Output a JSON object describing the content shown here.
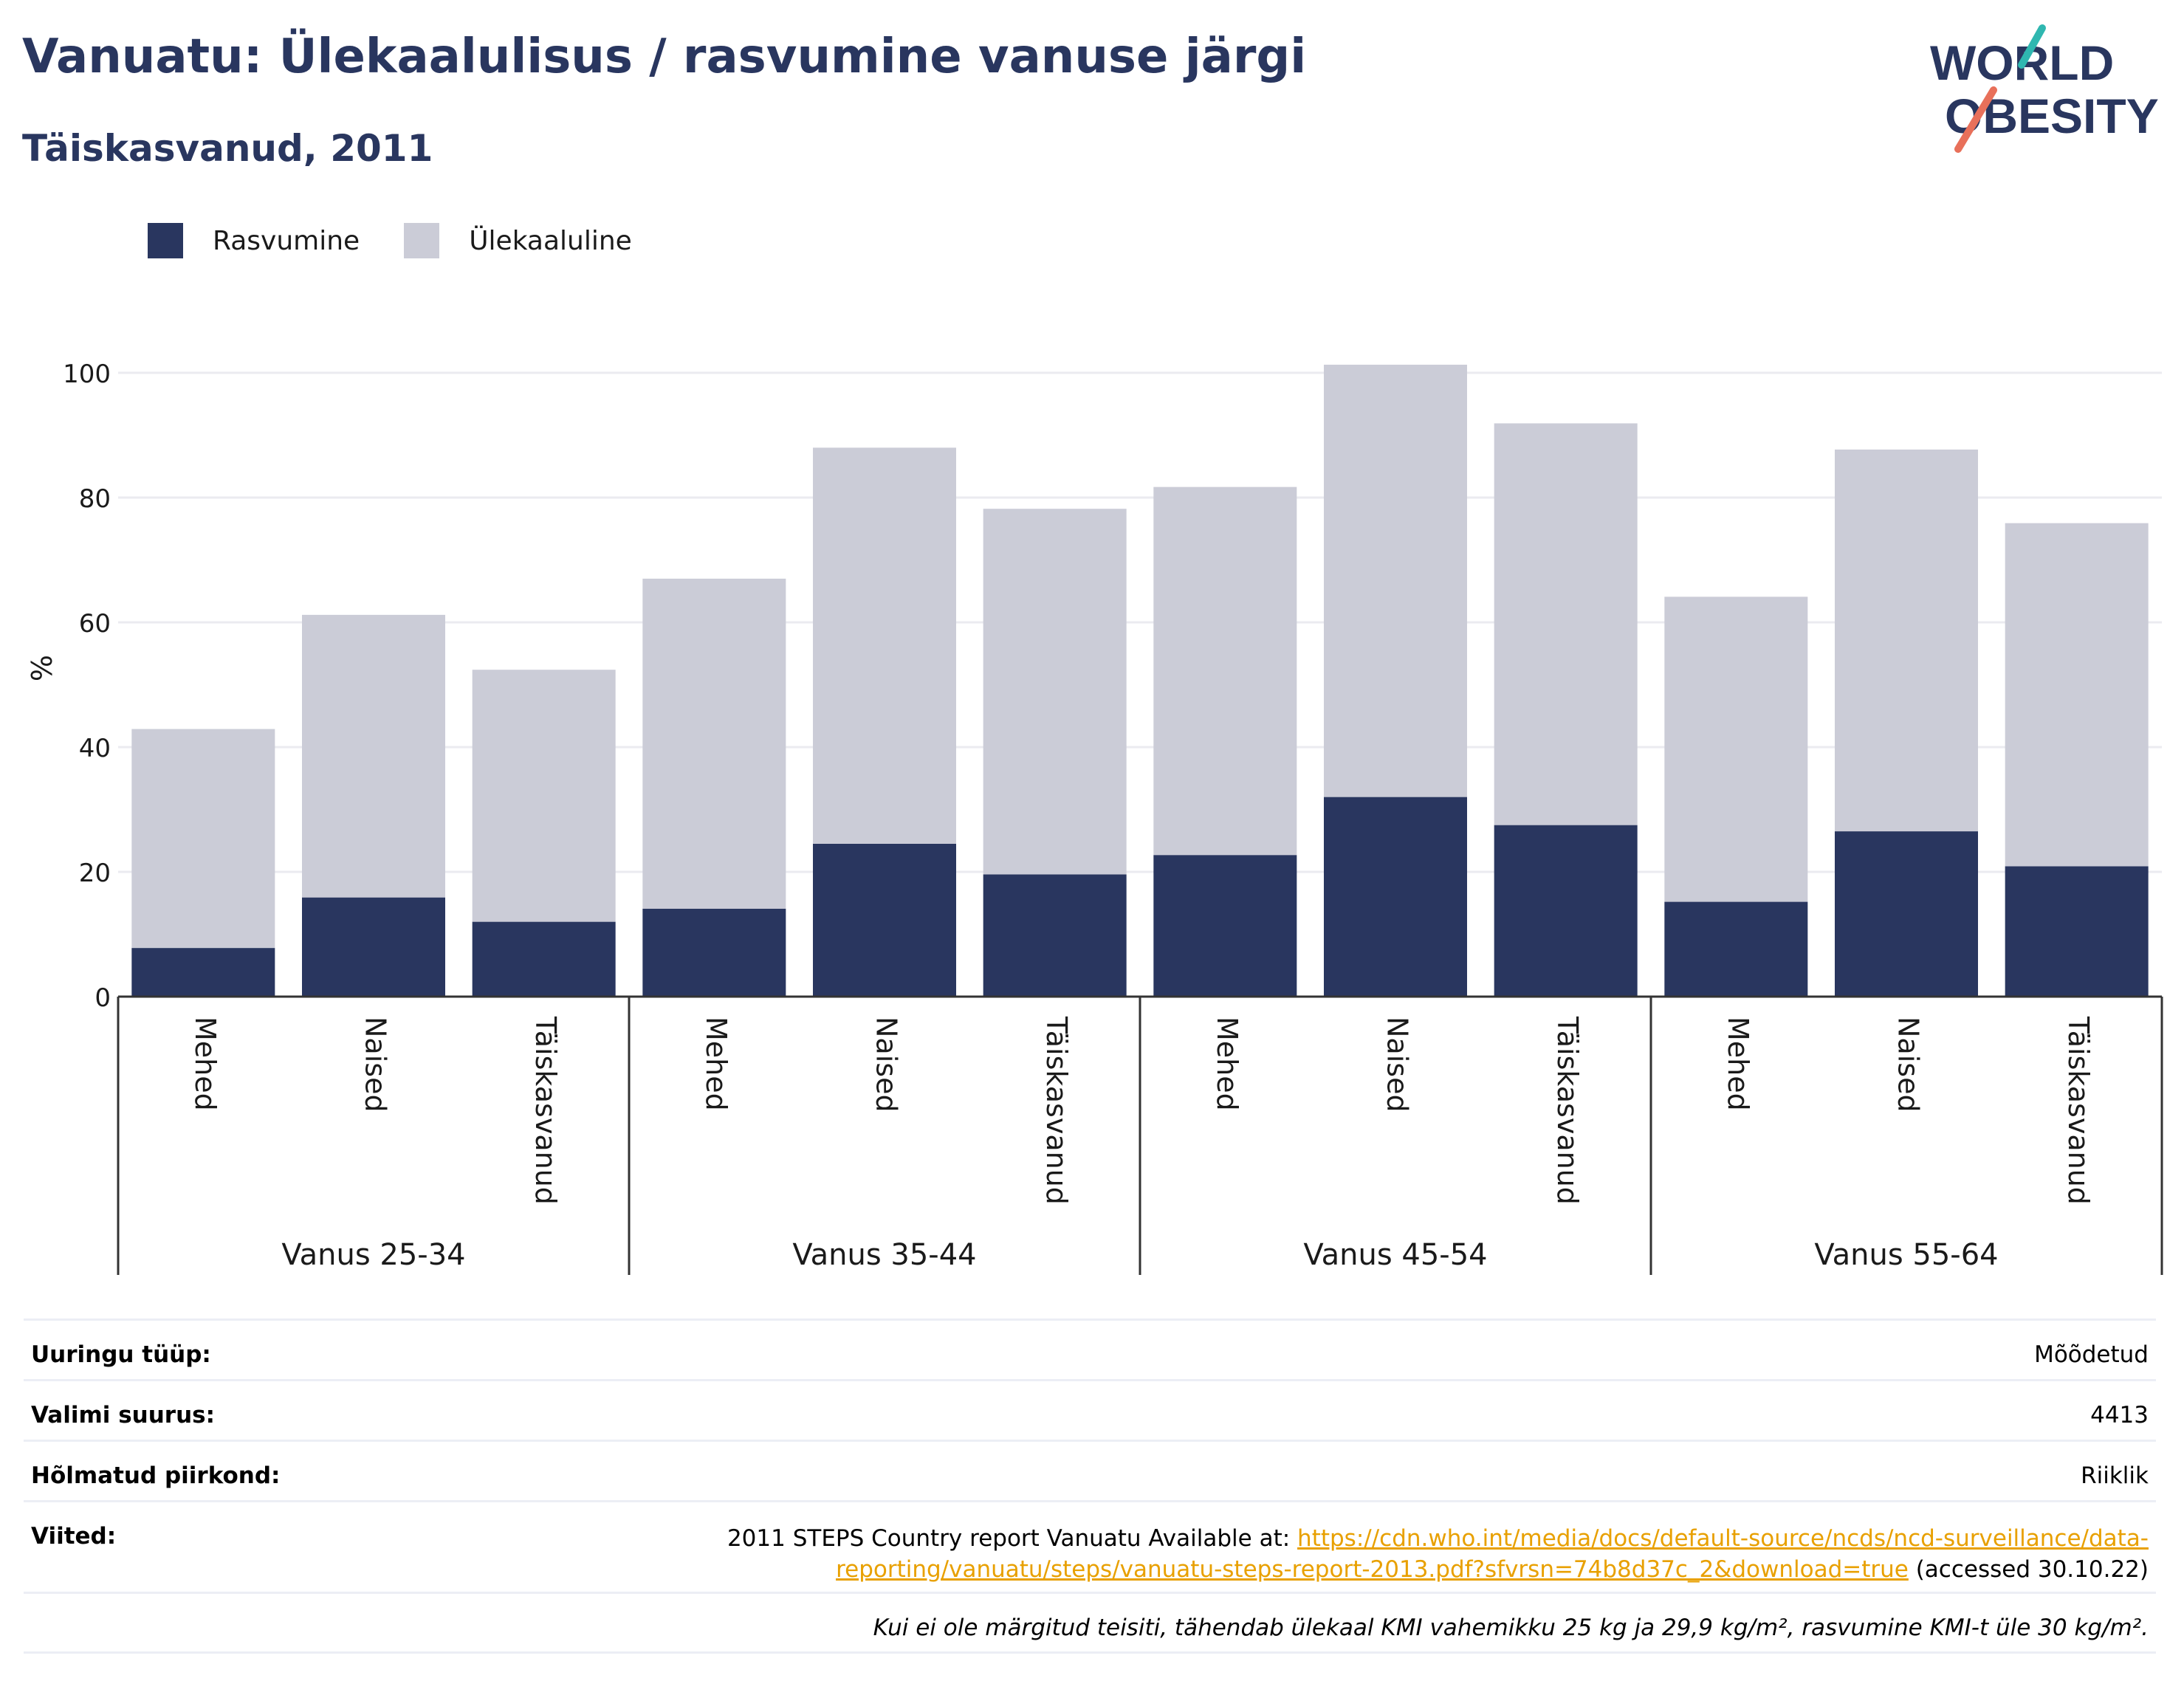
{
  "header": {
    "title": "Vanuatu: Ülekaalulisus / rasvumine vanuse järgi",
    "subtitle": "Täiskasvanud, 2011"
  },
  "logo": {
    "line1": "WORLD",
    "line2": "OBESITY"
  },
  "colors": {
    "obesity": "#29365f",
    "overweight": "#cbccd7",
    "title": "#29365f",
    "link": "#e8a000",
    "logo_teal": "#2fb7b0",
    "logo_coral": "#e8705a"
  },
  "chart_data": {
    "type": "bar",
    "stacked": true,
    "ylabel": "%",
    "ylim": [
      0,
      100
    ],
    "yticks": [
      0,
      20,
      40,
      60,
      80,
      100
    ],
    "grid": true,
    "legend_position": "top-left",
    "groups": [
      "Vanus 25-34",
      "Vanus 35-44",
      "Vanus 45-54",
      "Vanus 55-64"
    ],
    "categories": [
      "Mehed",
      "Naised",
      "Täiskasvanud"
    ],
    "series": [
      {
        "name": "Rasvumine",
        "values": [
          [
            7.8,
            15.9,
            12.0
          ],
          [
            14.1,
            24.5,
            19.6
          ],
          [
            22.7,
            32.0,
            27.5
          ],
          [
            15.2,
            26.5,
            20.9
          ]
        ]
      },
      {
        "name": "Ülekaaluline",
        "values": [
          [
            35.1,
            45.3,
            40.4
          ],
          [
            52.9,
            63.5,
            58.6
          ],
          [
            59.0,
            69.3,
            64.4
          ],
          [
            48.9,
            61.2,
            55.0
          ]
        ]
      }
    ]
  },
  "info": {
    "rows": [
      {
        "key": "Uuringu tüüp:",
        "value": "Mõõdetud"
      },
      {
        "key": "Valimi suurus:",
        "value": "4413"
      },
      {
        "key": "Hõlmatud piirkond:",
        "value": "Riiklik"
      }
    ],
    "references_key": "Viited:",
    "references_text": "2011 STEPS Country report Vanuatu Available at: ",
    "references_link_part1": "https://cdn.who.int/media/docs/default-source/ncds/ncd-surveillance/data-",
    "references_link_part2": "reporting/vanuatu/steps/vanuatu-steps-report-2013.pdf?sfvrsn=74b8d37c_2&download=true",
    "references_suffix": " (accessed 30.10.22)",
    "footnote": "Kui ei ole märgitud teisiti, tähendab ülekaal KMI vahemikku 25 kg ja 29,9 kg/m², rasvumine KMI-t üle 30 kg/m²."
  }
}
